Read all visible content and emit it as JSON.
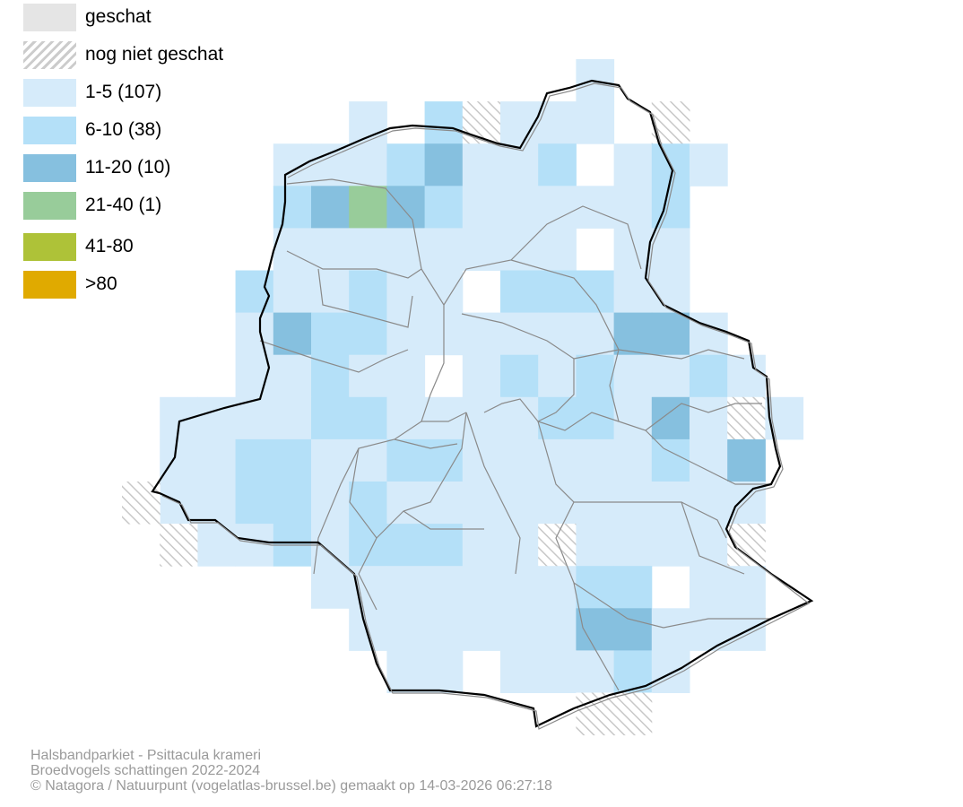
{
  "legend": {
    "items": [
      {
        "label": "geschat",
        "color": "#e5e5e5",
        "pattern": "solid"
      },
      {
        "label": "nog niet geschat",
        "color": "#cccccc",
        "pattern": "hatch"
      },
      {
        "label": "1-5 (107)",
        "color": "#d6ebfa",
        "pattern": "solid"
      },
      {
        "label": "6-10 (38)",
        "color": "#b4e0f8",
        "pattern": "solid"
      },
      {
        "label": "11-20 (10)",
        "color": "#86c0df",
        "pattern": "solid"
      },
      {
        "label": "21-40 (1)",
        "color": "#98cc9a",
        "pattern": "solid"
      },
      {
        "label": "41-80",
        "color": "#aec238",
        "pattern": "solid"
      },
      {
        "label": ">80",
        "color": "#e0aa00",
        "pattern": "solid"
      }
    ]
  },
  "map": {
    "colors": {
      "boundary": "#000000",
      "communes": "#8a8a8a",
      "hatch": "#c8c8c8"
    }
  },
  "credits": {
    "line1": "Halsbandparkiet - Psittacula krameri",
    "line2": "Broedvogels schattingen 2022-2024",
    "line3": "© Natagora / Natuurpunt (vogelatlas-brussel.be) gemaakt op 14-03-2026 06:27:18"
  }
}
